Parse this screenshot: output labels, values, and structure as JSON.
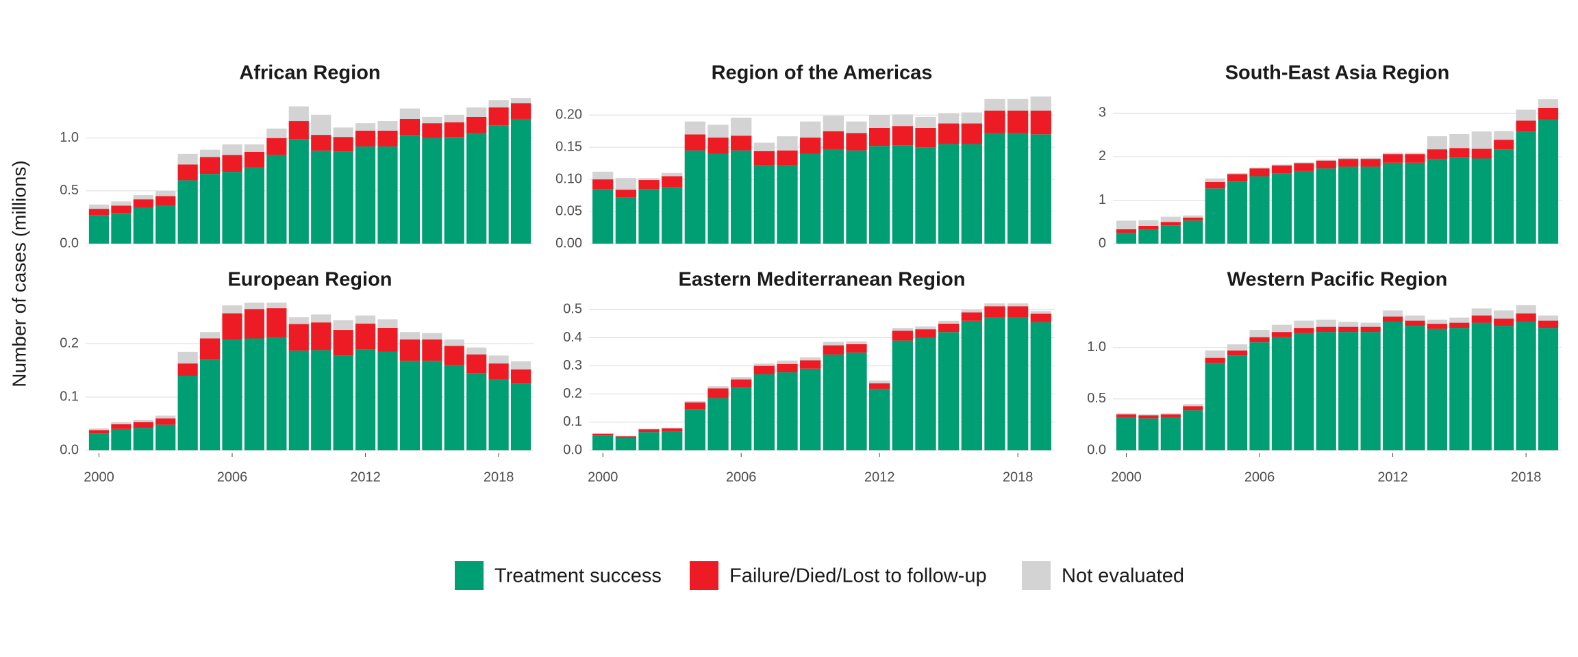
{
  "chart_data": [
    {
      "type": "bar",
      "stacked": true,
      "title": "African Region",
      "ylabel": "Number of cases (millions)",
      "x": [
        2000,
        2001,
        2002,
        2003,
        2004,
        2005,
        2006,
        2007,
        2008,
        2009,
        2010,
        2011,
        2012,
        2013,
        2014,
        2015,
        2016,
        2017,
        2018,
        2019
      ],
      "xlim": [
        1999.4,
        2019.6
      ],
      "ylim": [
        0,
        1.4
      ],
      "yticks": [
        {
          "value": 0,
          "label": "0.0"
        },
        0.5,
        {
          "value": 1,
          "label": "1.0"
        }
      ],
      "grid": true,
      "series": [
        {
          "name": "Treatment success",
          "color": "#009e73",
          "values": [
            0.27,
            0.29,
            0.34,
            0.36,
            0.6,
            0.66,
            0.68,
            0.72,
            0.84,
            0.99,
            0.88,
            0.87,
            0.92,
            0.92,
            1.03,
            1.0,
            1.01,
            1.05,
            1.12,
            1.18
          ]
        },
        {
          "name": "Failure/Died/Lost to follow-up",
          "color": "#ed1c24",
          "values": [
            0.06,
            0.07,
            0.08,
            0.09,
            0.15,
            0.16,
            0.16,
            0.15,
            0.16,
            0.17,
            0.15,
            0.14,
            0.15,
            0.15,
            0.15,
            0.14,
            0.14,
            0.15,
            0.17,
            0.15
          ]
        },
        {
          "name": "Not evaluated",
          "color": "#d3d3d3",
          "values": [
            0.04,
            0.04,
            0.04,
            0.05,
            0.1,
            0.07,
            0.1,
            0.07,
            0.09,
            0.14,
            0.19,
            0.09,
            0.07,
            0.09,
            0.1,
            0.06,
            0.07,
            0.09,
            0.07,
            0.05
          ]
        }
      ]
    },
    {
      "type": "bar",
      "stacked": true,
      "title": "Region of the Americas",
      "x": [
        2000,
        2001,
        2002,
        2003,
        2004,
        2005,
        2006,
        2007,
        2008,
        2009,
        2010,
        2011,
        2012,
        2013,
        2014,
        2015,
        2016,
        2017,
        2018,
        2019
      ],
      "xlim": [
        1999.4,
        2019.6
      ],
      "ylim": [
        0,
        0.23
      ],
      "yticks": [
        {
          "value": 0,
          "label": "0.00"
        },
        0.05,
        {
          "value": 0.1,
          "label": "0.10"
        },
        0.15,
        {
          "value": 0.2,
          "label": "0.20"
        }
      ],
      "grid": true,
      "series": [
        {
          "name": "Treatment success",
          "color": "#009e73",
          "values": [
            0.085,
            0.072,
            0.085,
            0.088,
            0.145,
            0.14,
            0.145,
            0.122,
            0.122,
            0.14,
            0.147,
            0.145,
            0.152,
            0.153,
            0.15,
            0.155,
            0.155,
            0.172,
            0.172,
            0.17
          ]
        },
        {
          "name": "Failure/Died/Lost to follow-up",
          "color": "#ed1c24",
          "values": [
            0.015,
            0.012,
            0.014,
            0.017,
            0.025,
            0.025,
            0.023,
            0.022,
            0.023,
            0.025,
            0.028,
            0.027,
            0.028,
            0.03,
            0.03,
            0.032,
            0.032,
            0.035,
            0.035,
            0.037
          ]
        },
        {
          "name": "Not evaluated",
          "color": "#d3d3d3",
          "values": [
            0.012,
            0.018,
            0.003,
            0.005,
            0.02,
            0.02,
            0.028,
            0.013,
            0.022,
            0.025,
            0.024,
            0.018,
            0.02,
            0.018,
            0.017,
            0.016,
            0.017,
            0.018,
            0.018,
            0.022
          ]
        }
      ]
    },
    {
      "type": "bar",
      "stacked": true,
      "title": "South-East Asia Region",
      "x": [
        2000,
        2001,
        2002,
        2003,
        2004,
        2005,
        2006,
        2007,
        2008,
        2009,
        2010,
        2011,
        2012,
        2013,
        2014,
        2015,
        2016,
        2017,
        2018,
        2019
      ],
      "xlim": [
        1999.4,
        2019.6
      ],
      "ylim": [
        0,
        3.4
      ],
      "yticks": [
        0,
        1,
        2,
        3
      ],
      "grid": true,
      "series": [
        {
          "name": "Treatment success",
          "color": "#009e73",
          "values": [
            0.25,
            0.33,
            0.42,
            0.53,
            1.27,
            1.43,
            1.55,
            1.62,
            1.67,
            1.73,
            1.77,
            1.77,
            1.86,
            1.86,
            1.95,
            1.98,
            1.96,
            2.17,
            2.58,
            2.85
          ]
        },
        {
          "name": "Failure/Died/Lost to follow-up",
          "color": "#ed1c24",
          "values": [
            0.08,
            0.08,
            0.08,
            0.07,
            0.15,
            0.17,
            0.18,
            0.18,
            0.18,
            0.18,
            0.18,
            0.18,
            0.2,
            0.2,
            0.22,
            0.22,
            0.22,
            0.22,
            0.25,
            0.27
          ]
        },
        {
          "name": "Not evaluated",
          "color": "#d3d3d3",
          "values": [
            0.2,
            0.13,
            0.12,
            0.05,
            0.08,
            0.02,
            0.02,
            0.02,
            0.02,
            0.02,
            0.02,
            0.02,
            0.03,
            0.03,
            0.3,
            0.32,
            0.4,
            0.2,
            0.25,
            0.2
          ]
        }
      ]
    },
    {
      "type": "bar",
      "stacked": true,
      "title": "European Region",
      "x": [
        2000,
        2001,
        2002,
        2003,
        2004,
        2005,
        2006,
        2007,
        2008,
        2009,
        2010,
        2011,
        2012,
        2013,
        2014,
        2015,
        2016,
        2017,
        2018,
        2019
      ],
      "xlim": [
        1999.4,
        2019.6
      ],
      "ylim": [
        0,
        0.28
      ],
      "xticks": [
        2000,
        2006,
        2012,
        2018
      ],
      "yticks": [
        {
          "value": 0,
          "label": "0.0"
        },
        0.1,
        0.2
      ],
      "grid": true,
      "series": [
        {
          "name": "Treatment success",
          "color": "#009e73",
          "values": [
            0.032,
            0.04,
            0.042,
            0.048,
            0.14,
            0.17,
            0.207,
            0.21,
            0.212,
            0.187,
            0.188,
            0.178,
            0.19,
            0.185,
            0.168,
            0.168,
            0.16,
            0.145,
            0.133,
            0.125
          ]
        },
        {
          "name": "Failure/Died/Lost to follow-up",
          "color": "#ed1c24",
          "values": [
            0.006,
            0.009,
            0.011,
            0.012,
            0.023,
            0.04,
            0.05,
            0.055,
            0.055,
            0.05,
            0.052,
            0.048,
            0.048,
            0.045,
            0.04,
            0.04,
            0.036,
            0.035,
            0.03,
            0.027
          ]
        },
        {
          "name": "Not evaluated",
          "color": "#d3d3d3",
          "values": [
            0.003,
            0.004,
            0.004,
            0.005,
            0.022,
            0.012,
            0.015,
            0.012,
            0.01,
            0.013,
            0.015,
            0.018,
            0.015,
            0.016,
            0.014,
            0.012,
            0.012,
            0.013,
            0.015,
            0.015
          ]
        }
      ]
    },
    {
      "type": "bar",
      "stacked": true,
      "title": "Eastern Mediterranean Region",
      "x": [
        2000,
        2001,
        2002,
        2003,
        2004,
        2005,
        2006,
        2007,
        2008,
        2009,
        2010,
        2011,
        2012,
        2013,
        2014,
        2015,
        2016,
        2017,
        2018,
        2019
      ],
      "xlim": [
        1999.4,
        2019.6
      ],
      "ylim": [
        0,
        0.53
      ],
      "xticks": [
        2000,
        2006,
        2012,
        2018
      ],
      "yticks": [
        {
          "value": 0,
          "label": "0.0"
        },
        0.1,
        0.2,
        0.3,
        0.4,
        0.5
      ],
      "grid": true,
      "series": [
        {
          "name": "Treatment success",
          "color": "#009e73",
          "values": [
            0.053,
            0.045,
            0.065,
            0.068,
            0.145,
            0.185,
            0.222,
            0.27,
            0.277,
            0.29,
            0.34,
            0.347,
            0.218,
            0.39,
            0.4,
            0.42,
            0.46,
            0.472,
            0.472,
            0.455
          ]
        },
        {
          "name": "Failure/Died/Lost to follow-up",
          "color": "#ed1c24",
          "values": [
            0.006,
            0.005,
            0.01,
            0.01,
            0.025,
            0.035,
            0.03,
            0.03,
            0.03,
            0.03,
            0.033,
            0.03,
            0.02,
            0.035,
            0.03,
            0.03,
            0.03,
            0.04,
            0.04,
            0.03
          ]
        },
        {
          "name": "Not evaluated",
          "color": "#d3d3d3",
          "values": [
            0.002,
            0.002,
            0.002,
            0.002,
            0.005,
            0.008,
            0.008,
            0.008,
            0.012,
            0.01,
            0.012,
            0.01,
            0.01,
            0.01,
            0.01,
            0.01,
            0.01,
            0.01,
            0.01,
            0.01
          ]
        }
      ]
    },
    {
      "type": "bar",
      "stacked": true,
      "title": "Western Pacific Region",
      "x": [
        2000,
        2001,
        2002,
        2003,
        2004,
        2005,
        2006,
        2007,
        2008,
        2009,
        2010,
        2011,
        2012,
        2013,
        2014,
        2015,
        2016,
        2017,
        2018,
        2019
      ],
      "xlim": [
        1999.4,
        2019.6
      ],
      "ylim": [
        0,
        1.45
      ],
      "xticks": [
        2000,
        2006,
        2012,
        2018
      ],
      "yticks": [
        {
          "value": 0,
          "label": "0.0"
        },
        0.5,
        {
          "value": 1,
          "label": "1.0"
        }
      ],
      "grid": true,
      "series": [
        {
          "name": "Treatment success",
          "color": "#009e73",
          "values": [
            0.32,
            0.31,
            0.32,
            0.39,
            0.85,
            0.92,
            1.05,
            1.1,
            1.14,
            1.15,
            1.15,
            1.15,
            1.25,
            1.21,
            1.18,
            1.19,
            1.24,
            1.21,
            1.25,
            1.19
          ]
        },
        {
          "name": "Failure/Died/Lost to follow-up",
          "color": "#ed1c24",
          "values": [
            0.03,
            0.03,
            0.03,
            0.04,
            0.05,
            0.05,
            0.05,
            0.05,
            0.05,
            0.05,
            0.05,
            0.05,
            0.05,
            0.05,
            0.05,
            0.05,
            0.07,
            0.07,
            0.08,
            0.07
          ]
        },
        {
          "name": "Not evaluated",
          "color": "#d3d3d3",
          "values": [
            0.01,
            0.01,
            0.01,
            0.02,
            0.07,
            0.06,
            0.07,
            0.07,
            0.07,
            0.07,
            0.05,
            0.04,
            0.06,
            0.05,
            0.04,
            0.05,
            0.07,
            0.08,
            0.08,
            0.05
          ]
        }
      ]
    }
  ]
}
